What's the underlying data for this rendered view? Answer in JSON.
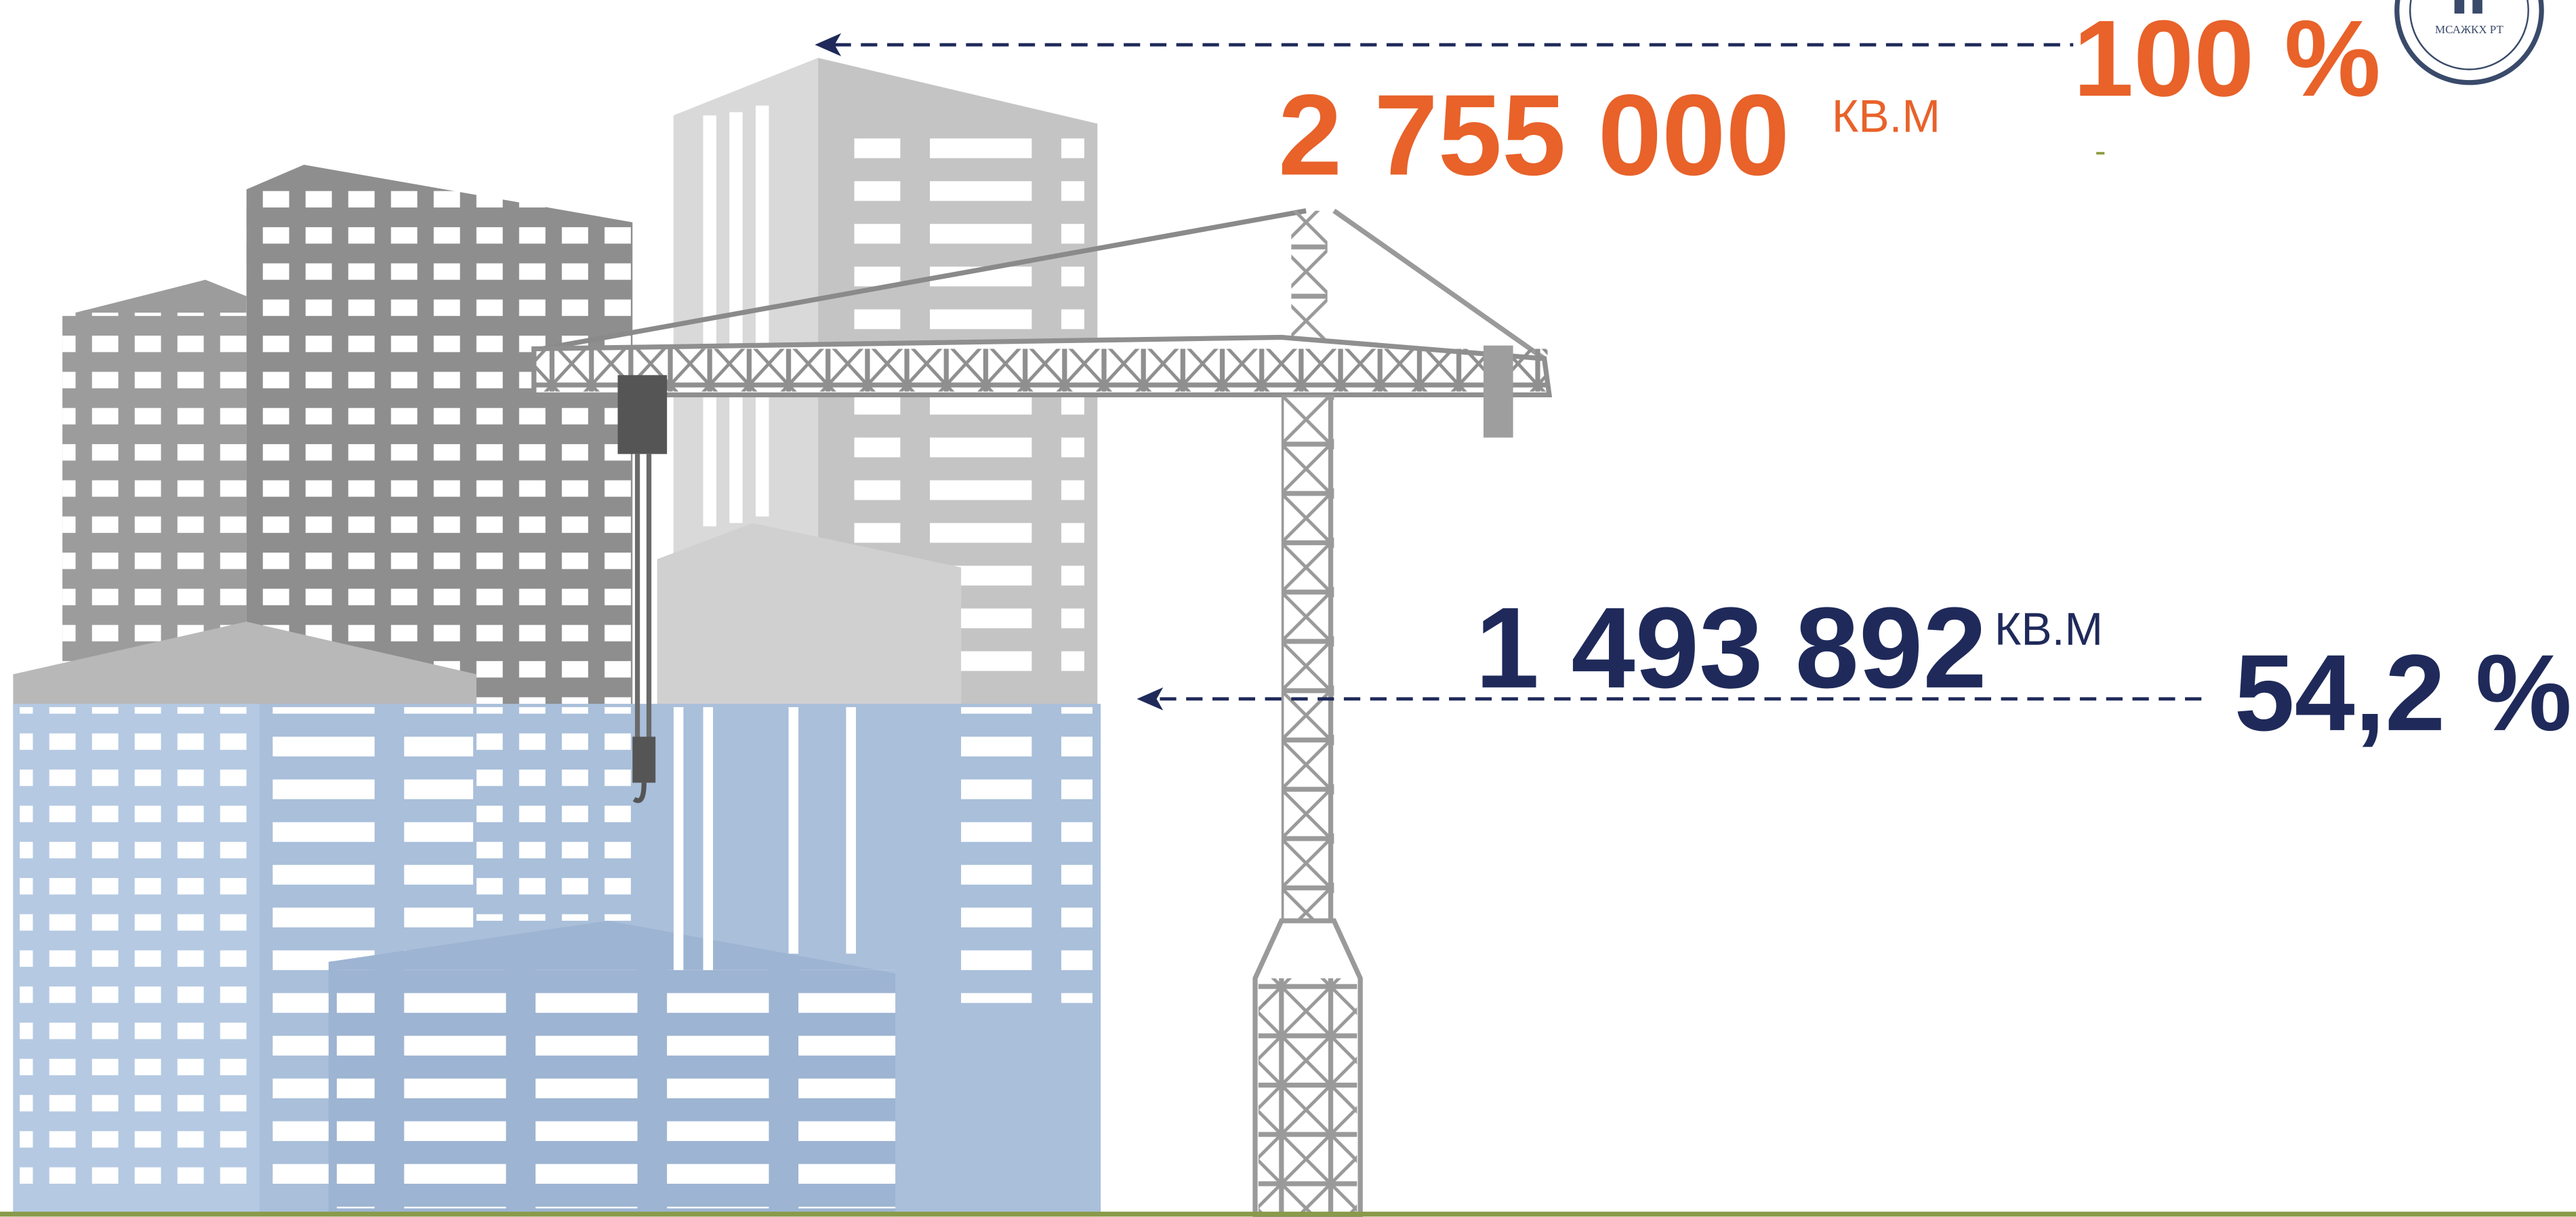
{
  "total": {
    "value": "2 755 000",
    "unit": "КВ.М",
    "percent": "100 %"
  },
  "completed": {
    "value": "1 493 892",
    "unit": "КВ.М",
    "percent": "54,2 %"
  },
  "logo": {
    "label": "МСАЖКХ РТ"
  }
}
